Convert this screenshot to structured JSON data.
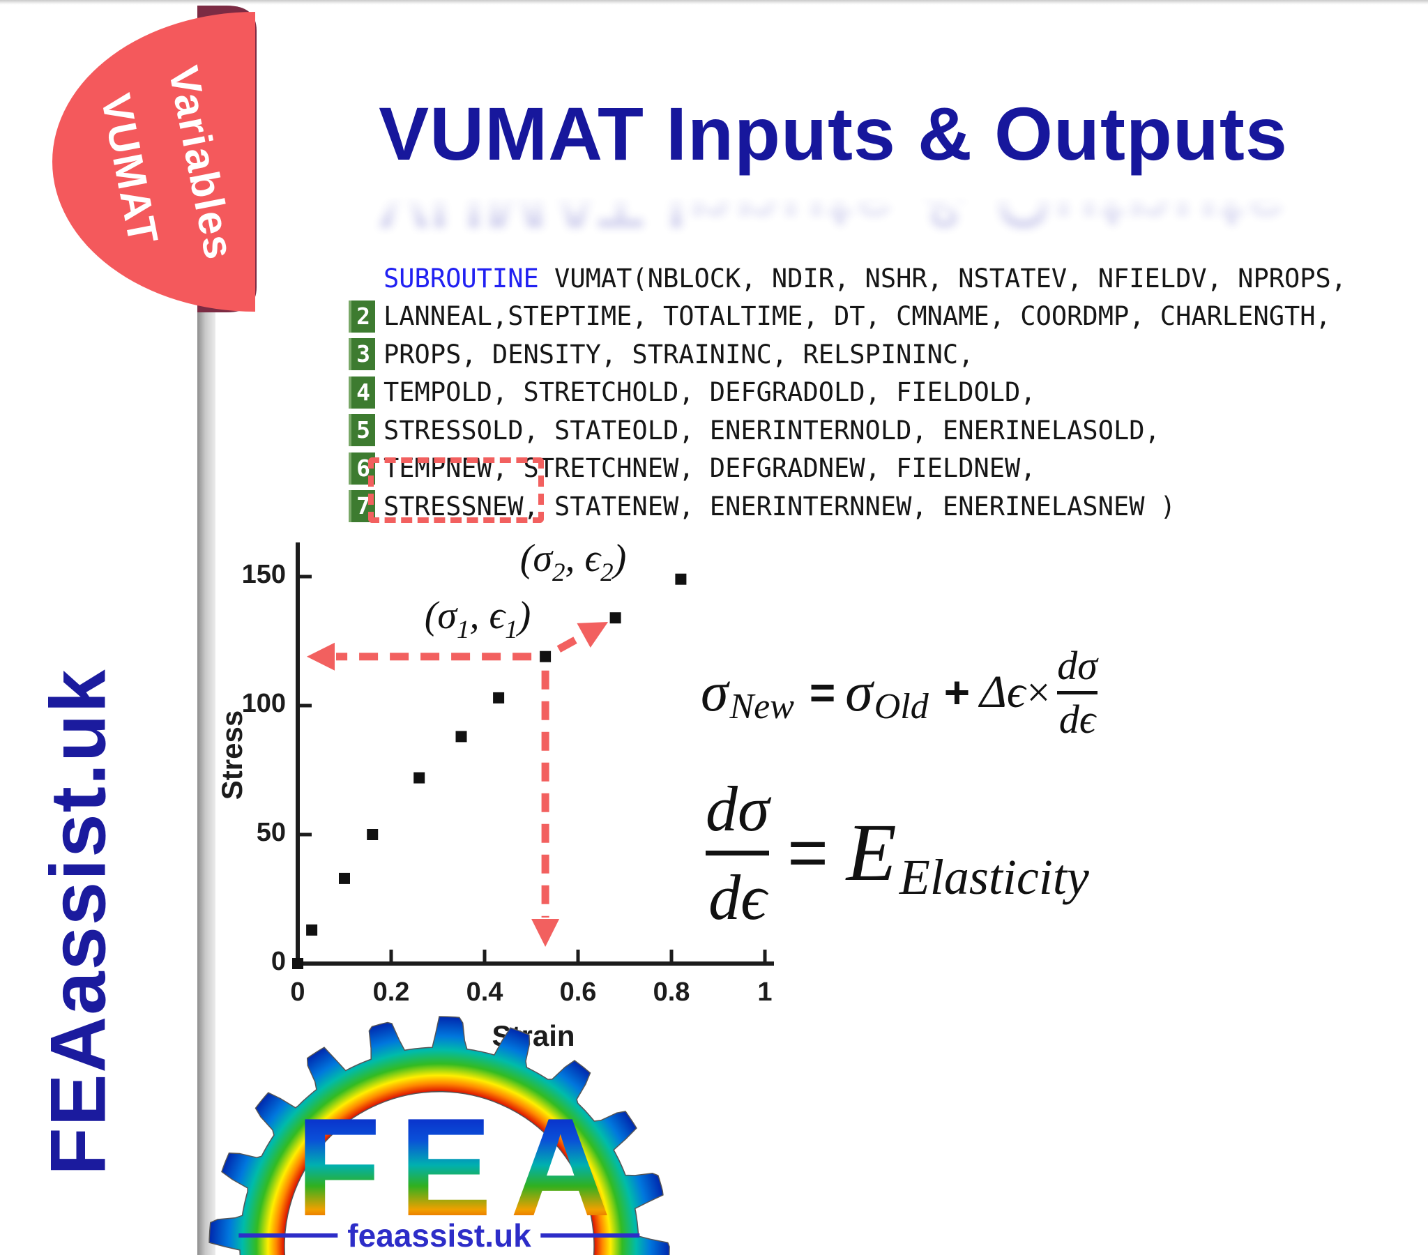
{
  "badge": {
    "line1": "VUMAT",
    "line2": "Variables",
    "coral": "#f4595c",
    "maroon": "#7c2b43"
  },
  "title": {
    "text": "VUMAT Inputs & Outputs",
    "color": "#17179c"
  },
  "watermark": {
    "text": "FEAassist.uk"
  },
  "code": {
    "keyword": "SUBROUTINE",
    "line1_rest": " VUMAT(NBLOCK, NDIR, NSHR, NSTATEV, NFIELDV, NPROPS,",
    "lines": [
      {
        "num": "2",
        "text": "LANNEAL,STEPTIME, TOTALTIME, DT, CMNAME, COORDMP, CHARLENGTH,"
      },
      {
        "num": "3",
        "text": "PROPS, DENSITY, STRAININC, RELSPININC,"
      },
      {
        "num": "4",
        "text": "TEMPOLD, STRETCHOLD, DEFGRADOLD, FIELDOLD,"
      },
      {
        "num": "5",
        "text": "STRESSOLD, STATEOLD, ENERINTERNOLD, ENERINELASOLD,"
      },
      {
        "num": "6",
        "text": "TEMPNEW, STRETCHNEW, DEFGRADNEW, FIELDNEW,"
      }
    ],
    "line7": {
      "num": "7",
      "highlighted": "STRESSNEW",
      "rest": ", STATENEW, ENERINTERNNEW, ENERINELASNEW )"
    },
    "keyword_color": "#2121f2",
    "line_number_bg": "#3d7b30"
  },
  "chart_data": {
    "type": "scatter",
    "xlabel": "Strain",
    "ylabel": "Stress",
    "xlim": [
      0,
      1
    ],
    "ylim": [
      0,
      160
    ],
    "xticks": [
      0,
      0.2,
      0.4,
      0.6,
      0.8,
      1
    ],
    "xtick_labels": [
      "0",
      "0.2",
      "0.4",
      "0.6",
      "0.8",
      "1"
    ],
    "yticks": [
      0,
      50,
      100,
      150
    ],
    "ytick_labels": [
      "0",
      "50",
      "100",
      "150"
    ],
    "grid": false,
    "marker": "black-square",
    "points": [
      [
        0,
        0
      ],
      [
        0.03,
        13
      ],
      [
        0.1,
        33
      ],
      [
        0.16,
        50
      ],
      [
        0.26,
        72
      ],
      [
        0.35,
        88
      ],
      [
        0.43,
        103
      ],
      [
        0.53,
        119
      ],
      [
        0.68,
        134
      ],
      [
        0.82,
        149
      ]
    ],
    "sigma1_point_index": 7,
    "sigma2_point_index": 8,
    "arrow_color": "#f2605f",
    "annotations": [
      {
        "pre": "(σ",
        "s1": "1",
        "mid": ", ϵ",
        "s2": "1",
        "post": ")"
      },
      {
        "pre": "(σ",
        "s1": "2",
        "mid": ", ϵ",
        "s2": "2",
        "post": ")"
      }
    ]
  },
  "formulas": {
    "f1": {
      "t1": "σ",
      "t1s": "New",
      "eq": "=",
      "t2": "σ",
      "t2s": "Old",
      "plus": "+",
      "t3": "Δϵ",
      "times": "×",
      "num": "dσ",
      "den": "dϵ"
    },
    "f2": {
      "num": "dσ",
      "den": "dϵ",
      "eq": "=",
      "E": "E",
      "Es": "Elasticity"
    }
  },
  "logo": {
    "fea": "FEA",
    "text": "feaassist.uk"
  }
}
